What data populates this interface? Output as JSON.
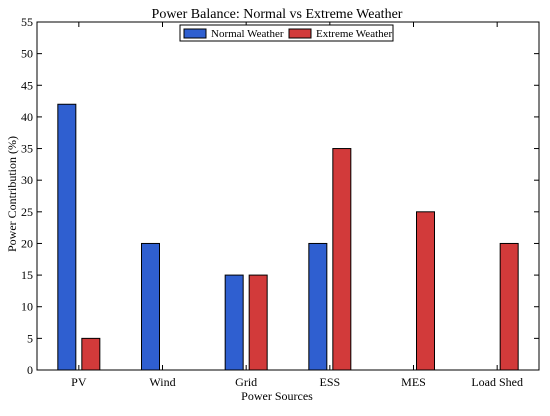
{
  "chart_data": {
    "type": "bar",
    "title": "Power Balance: Normal vs Extreme Weather",
    "xlabel": "Power Sources",
    "ylabel": "Power Contribution (%)",
    "categories": [
      "PV",
      "Wind",
      "Grid",
      "ESS",
      "MES",
      "Load Shed"
    ],
    "series": [
      {
        "name": "Normal Weather",
        "values": [
          42,
          20,
          15,
          20,
          0,
          0
        ],
        "color": "#2f5fd0"
      },
      {
        "name": "Extreme Weather",
        "values": [
          5,
          0,
          15,
          35,
          25,
          20
        ],
        "color": "#d23a3a"
      }
    ],
    "ylim": [
      0,
      55
    ],
    "yticks": [
      0,
      5,
      10,
      15,
      20,
      25,
      30,
      35,
      40,
      45,
      50,
      55
    ],
    "grid": false,
    "legend_position": "top-center"
  }
}
